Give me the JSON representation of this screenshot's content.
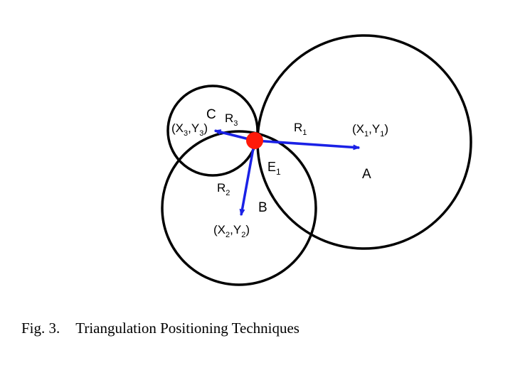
{
  "colors": {
    "circle_stroke": "#000000",
    "vector": "#1a21e6",
    "estimate_point": "#ff1a0a",
    "text": "#000000"
  },
  "labels": {
    "A": "A",
    "B": "B",
    "C": "C",
    "E": {
      "base": "E",
      "sub": "1"
    },
    "R1": {
      "base": "R",
      "sub": "1"
    },
    "R2": {
      "base": "R",
      "sub": "2"
    },
    "R3": {
      "base": "R",
      "sub": "3"
    },
    "P1": {
      "x": "X",
      "y": "Y",
      "sub": "1"
    },
    "P2": {
      "x": "X",
      "y": "Y",
      "sub": "2"
    },
    "P3": {
      "x": "X",
      "y": "Y",
      "sub": "3"
    }
  },
  "caption": {
    "number": "Fig. 3.",
    "text": "Triangulation Positioning Techniques"
  }
}
